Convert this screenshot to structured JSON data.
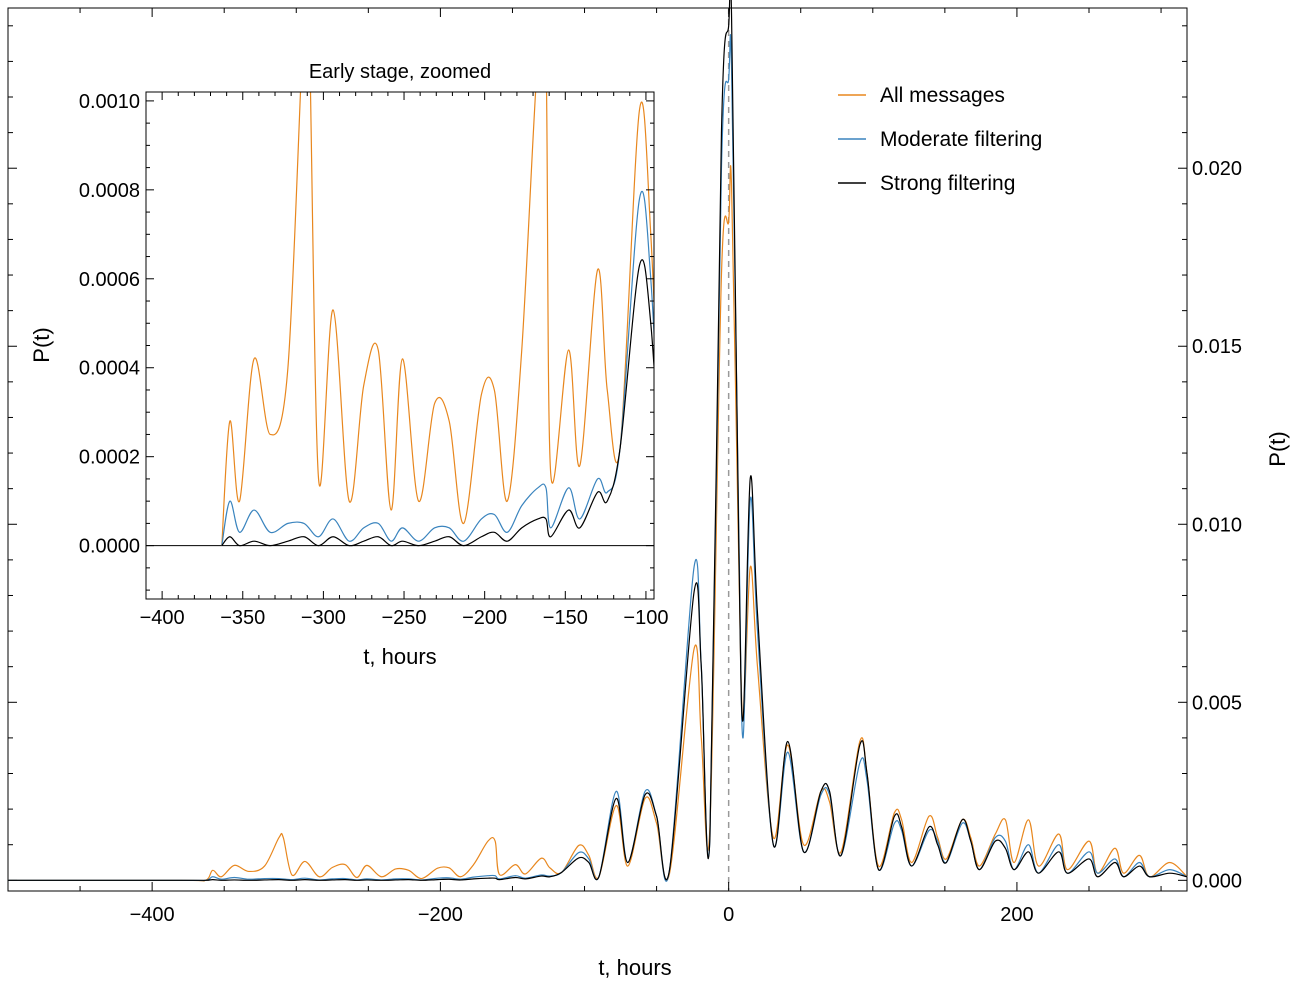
{
  "chart_data": [
    {
      "id": "main",
      "type": "line",
      "xlabel": "t, hours",
      "ylabel": "P(t)",
      "xlim": [
        -500,
        318
      ],
      "ylim": [
        -0.0003,
        0.0245
      ],
      "xticks": [
        -400,
        -200,
        0,
        200
      ],
      "xtick_labels": [
        "−400",
        "−200",
        "0",
        "200"
      ],
      "yticks": [
        0.0,
        0.005,
        0.01,
        0.015,
        0.02
      ],
      "ytick_labels": [
        "0.000",
        "0.005",
        "0.010",
        "0.015",
        "0.020"
      ],
      "yaxis_side": "right",
      "reference_line": {
        "x": 0,
        "style": "dashed",
        "color": "#999999"
      },
      "legend": {
        "placement": "top-right"
      },
      "series": [
        {
          "name": "All messages",
          "color": "#E8871E",
          "points": [
            [
              -500,
              0
            ],
            [
              -380,
              0
            ],
            [
              -363,
              0
            ],
            [
              -358,
              0.00028
            ],
            [
              -352,
              0.0001
            ],
            [
              -343,
              0.00042
            ],
            [
              -333,
              0.00025
            ],
            [
              -322,
              0.0004
            ],
            [
              -312,
              0.0012
            ],
            [
              -309,
              0.0012
            ],
            [
              -303,
              0.00015
            ],
            [
              -294,
              0.00053
            ],
            [
              -284,
              0.0001
            ],
            [
              -275,
              0.00036
            ],
            [
              -266,
              0.00044
            ],
            [
              -258,
              8e-05
            ],
            [
              -251,
              0.00042
            ],
            [
              -241,
              0.0001
            ],
            [
              -231,
              0.00032
            ],
            [
              -222,
              0.00028
            ],
            [
              -213,
              5e-05
            ],
            [
              -202,
              0.00034
            ],
            [
              -194,
              0.00035
            ],
            [
              -186,
              0.0001
            ],
            [
              -177,
              0.00044
            ],
            [
              -167,
              0.0011
            ],
            [
              -162,
              0.0011
            ],
            [
              -159,
              0.00016
            ],
            [
              -148,
              0.00044
            ],
            [
              -141,
              0.00018
            ],
            [
              -130,
              0.00062
            ],
            [
              -124,
              0.00035
            ],
            [
              -116,
              0.00022
            ],
            [
              -104,
              0.00098
            ],
            [
              -97,
              0.0007
            ],
            [
              -90,
              0.0001
            ],
            [
              -78,
              0.0021
            ],
            [
              -70,
              0.0004
            ],
            [
              -58,
              0.0023
            ],
            [
              -50,
              0.0016
            ],
            [
              -41,
              0.0002
            ],
            [
              -24,
              0.0065
            ],
            [
              -19,
              0.004
            ],
            [
              -13,
              0.0015
            ],
            [
              -5,
              0.017
            ],
            [
              0,
              0.0185
            ],
            [
              2,
              0.0195
            ],
            [
              7,
              0.009
            ],
            [
              10,
              0.0045
            ],
            [
              15,
              0.0088
            ],
            [
              20,
              0.006
            ],
            [
              31,
              0.0012
            ],
            [
              41,
              0.0038
            ],
            [
              52,
              0.001
            ],
            [
              64,
              0.0025
            ],
            [
              70,
              0.0022
            ],
            [
              78,
              0.0008
            ],
            [
              91,
              0.0039
            ],
            [
              96,
              0.003
            ],
            [
              104,
              0.0004
            ],
            [
              115,
              0.0019
            ],
            [
              120,
              0.0017
            ],
            [
              127,
              0.0005
            ],
            [
              139,
              0.0018
            ],
            [
              145,
              0.0012
            ],
            [
              151,
              0.0006
            ],
            [
              162,
              0.0017
            ],
            [
              168,
              0.0012
            ],
            [
              174,
              0.0004
            ],
            [
              185,
              0.0013
            ],
            [
              192,
              0.0017
            ],
            [
              198,
              0.0005
            ],
            [
              208,
              0.0017
            ],
            [
              215,
              0.0004
            ],
            [
              229,
              0.0013
            ],
            [
              235,
              0.0003
            ],
            [
              250,
              0.0011
            ],
            [
              256,
              0.0002
            ],
            [
              268,
              0.0009
            ],
            [
              274,
              0.0002
            ],
            [
              285,
              0.0007
            ],
            [
              292,
              0.0001
            ],
            [
              306,
              0.0005
            ],
            [
              318,
              0.0001
            ]
          ]
        },
        {
          "name": "Moderate filtering",
          "color": "#3A84BE",
          "points": [
            [
              -500,
              0
            ],
            [
              -380,
              0
            ],
            [
              -363,
              0
            ],
            [
              -358,
              0.0001
            ],
            [
              -352,
              3e-05
            ],
            [
              -343,
              8e-05
            ],
            [
              -333,
              3e-05
            ],
            [
              -322,
              5e-05
            ],
            [
              -312,
              5e-05
            ],
            [
              -303,
              2e-05
            ],
            [
              -294,
              6e-05
            ],
            [
              -284,
              1e-05
            ],
            [
              -275,
              4e-05
            ],
            [
              -266,
              5e-05
            ],
            [
              -258,
              1e-05
            ],
            [
              -251,
              4e-05
            ],
            [
              -241,
              1e-05
            ],
            [
              -231,
              4e-05
            ],
            [
              -222,
              4e-05
            ],
            [
              -213,
              1e-05
            ],
            [
              -202,
              6e-05
            ],
            [
              -194,
              7e-05
            ],
            [
              -186,
              3e-05
            ],
            [
              -177,
              9e-05
            ],
            [
              -167,
              0.00013
            ],
            [
              -162,
              0.00013
            ],
            [
              -159,
              4e-05
            ],
            [
              -148,
              0.00013
            ],
            [
              -141,
              6e-05
            ],
            [
              -130,
              0.00015
            ],
            [
              -124,
              0.00012
            ],
            [
              -116,
              0.00022
            ],
            [
              -104,
              0.00078
            ],
            [
              -97,
              0.0006
            ],
            [
              -90,
              0.0001
            ],
            [
              -78,
              0.0025
            ],
            [
              -70,
              0.0005
            ],
            [
              -58,
              0.0025
            ],
            [
              -50,
              0.0018
            ],
            [
              -41,
              0.0003
            ],
            [
              -24,
              0.0088
            ],
            [
              -19,
              0.006
            ],
            [
              -13,
              0.0012
            ],
            [
              -5,
              0.02
            ],
            [
              0,
              0.0225
            ],
            [
              2,
              0.0228
            ],
            [
              7,
              0.01
            ],
            [
              10,
              0.004
            ],
            [
              15,
              0.0107
            ],
            [
              20,
              0.007
            ],
            [
              31,
              0.001
            ],
            [
              41,
              0.0036
            ],
            [
              52,
              0.0008
            ],
            [
              64,
              0.0024
            ],
            [
              70,
              0.0024
            ],
            [
              78,
              0.0007
            ],
            [
              91,
              0.0033
            ],
            [
              96,
              0.0028
            ],
            [
              104,
              0.0003
            ],
            [
              115,
              0.0016
            ],
            [
              120,
              0.0014
            ],
            [
              127,
              0.0004
            ],
            [
              139,
              0.0014
            ],
            [
              145,
              0.0011
            ],
            [
              151,
              0.0005
            ],
            [
              162,
              0.0016
            ],
            [
              168,
              0.0011
            ],
            [
              174,
              0.0003
            ],
            [
              185,
              0.0012
            ],
            [
              192,
              0.0011
            ],
            [
              198,
              0.0003
            ],
            [
              208,
              0.001
            ],
            [
              215,
              0.0002
            ],
            [
              229,
              0.001
            ],
            [
              235,
              0.0002
            ],
            [
              250,
              0.0008
            ],
            [
              256,
              0.0002
            ],
            [
              268,
              0.0006
            ],
            [
              274,
              0.0001
            ],
            [
              285,
              0.0005
            ],
            [
              292,
              0.0001
            ],
            [
              306,
              0.0003
            ],
            [
              318,
              0.0001
            ]
          ]
        },
        {
          "name": "Strong filtering",
          "color": "#000000",
          "points": [
            [
              -500,
              0
            ],
            [
              -380,
              0
            ],
            [
              -363,
              0
            ],
            [
              -358,
              2e-05
            ],
            [
              -352,
              0
            ],
            [
              -343,
              1e-05
            ],
            [
              -333,
              0
            ],
            [
              -322,
              1e-05
            ],
            [
              -312,
              2e-05
            ],
            [
              -303,
              0
            ],
            [
              -294,
              2e-05
            ],
            [
              -284,
              0
            ],
            [
              -275,
              1e-05
            ],
            [
              -266,
              2e-05
            ],
            [
              -258,
              0
            ],
            [
              -251,
              1e-05
            ],
            [
              -241,
              0
            ],
            [
              -231,
              1e-05
            ],
            [
              -222,
              2e-05
            ],
            [
              -213,
              0
            ],
            [
              -202,
              2e-05
            ],
            [
              -194,
              3e-05
            ],
            [
              -186,
              1e-05
            ],
            [
              -177,
              4e-05
            ],
            [
              -167,
              6e-05
            ],
            [
              -162,
              6e-05
            ],
            [
              -159,
              2e-05
            ],
            [
              -148,
              8e-05
            ],
            [
              -141,
              4e-05
            ],
            [
              -130,
              0.00012
            ],
            [
              -124,
              0.0001
            ],
            [
              -116,
              0.00022
            ],
            [
              -104,
              0.00063
            ],
            [
              -97,
              0.0005
            ],
            [
              -90,
              0.0001
            ],
            [
              -78,
              0.0023
            ],
            [
              -70,
              0.0005
            ],
            [
              -58,
              0.0024
            ],
            [
              -50,
              0.0018
            ],
            [
              -41,
              0.0003
            ],
            [
              -24,
              0.0081
            ],
            [
              -19,
              0.006
            ],
            [
              -13,
              0.0012
            ],
            [
              -5,
              0.021
            ],
            [
              0,
              0.024
            ],
            [
              2,
              0.0243
            ],
            [
              7,
              0.0095
            ],
            [
              10,
              0.0045
            ],
            [
              15,
              0.0113
            ],
            [
              20,
              0.0075
            ],
            [
              31,
              0.001
            ],
            [
              41,
              0.0039
            ],
            [
              52,
              0.0008
            ],
            [
              64,
              0.0025
            ],
            [
              70,
              0.0025
            ],
            [
              78,
              0.0007
            ],
            [
              91,
              0.0038
            ],
            [
              96,
              0.003
            ],
            [
              104,
              0.0003
            ],
            [
              115,
              0.0018
            ],
            [
              120,
              0.0015
            ],
            [
              127,
              0.0004
            ],
            [
              139,
              0.0015
            ],
            [
              145,
              0.001
            ],
            [
              151,
              0.0005
            ],
            [
              162,
              0.0017
            ],
            [
              168,
              0.0011
            ],
            [
              174,
              0.0003
            ],
            [
              185,
              0.0011
            ],
            [
              192,
              0.0009
            ],
            [
              198,
              0.0003
            ],
            [
              208,
              0.0008
            ],
            [
              215,
              0.0002
            ],
            [
              229,
              0.0008
            ],
            [
              235,
              0.0002
            ],
            [
              250,
              0.0006
            ],
            [
              256,
              0.0001
            ],
            [
              268,
              0.0005
            ],
            [
              274,
              0.0001
            ],
            [
              285,
              0.0004
            ],
            [
              292,
              0.0001
            ],
            [
              306,
              0.0002
            ],
            [
              318,
              0.0001
            ]
          ]
        }
      ]
    },
    {
      "id": "inset",
      "type": "line",
      "title": "Early stage, zoomed",
      "xlabel": "t, hours",
      "ylabel": "P(t)",
      "xlim": [
        -410,
        -95
      ],
      "ylim": [
        -0.00012,
        0.00102
      ],
      "xticks": [
        -400,
        -350,
        -300,
        -250,
        -200,
        -150,
        -100
      ],
      "xtick_labels": [
        "−400",
        "−350",
        "−300",
        "−250",
        "−200",
        "−150",
        "−100"
      ],
      "yticks": [
        0.0,
        0.0002,
        0.0004,
        0.0006,
        0.0008,
        0.001
      ],
      "ytick_labels": [
        "0.0000",
        "0.0002",
        "0.0004",
        "0.0006",
        "0.0008",
        "0.0010"
      ],
      "zero_line": true,
      "series_from": "main",
      "clip": true
    }
  ]
}
